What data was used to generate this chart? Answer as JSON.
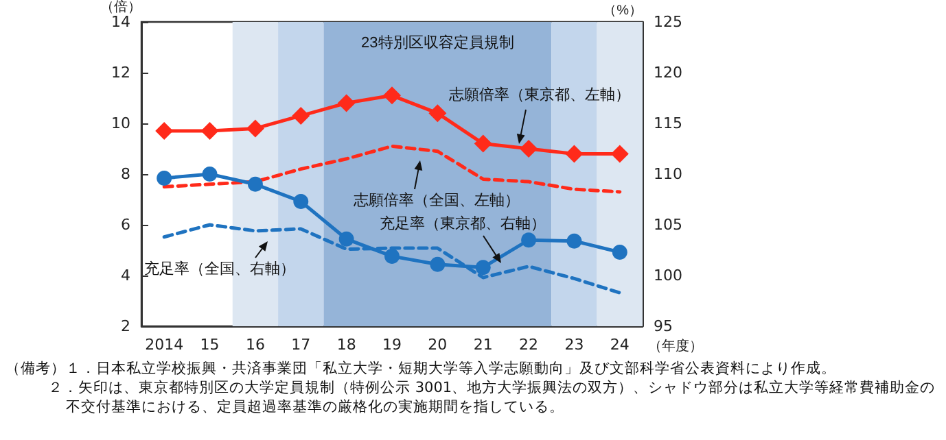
{
  "chart_data": {
    "type": "line",
    "ylabel": "（倍）",
    "y2label": "（%）",
    "xlabel": "（年度）",
    "x": [
      2014,
      2015,
      2016,
      2017,
      2018,
      2019,
      2020,
      2021,
      2022,
      2023,
      2024
    ],
    "xlim": [
      2013.5,
      2024.5
    ],
    "xticks": [
      {
        "value": 2014,
        "label": "2014"
      },
      {
        "value": 2015,
        "label": "15"
      },
      {
        "value": 2016,
        "label": "16"
      },
      {
        "value": 2017,
        "label": "17"
      },
      {
        "value": 2018,
        "label": "18"
      },
      {
        "value": 2019,
        "label": "19"
      },
      {
        "value": 2020,
        "label": "20"
      },
      {
        "value": 2021,
        "label": "21"
      },
      {
        "value": 2022,
        "label": "22"
      },
      {
        "value": 2023,
        "label": "23"
      },
      {
        "value": 2024,
        "label": "24"
      }
    ],
    "ylim": [
      2,
      14
    ],
    "yticks": [
      2,
      4,
      6,
      8,
      10,
      12,
      14
    ],
    "y2lim": [
      95,
      125
    ],
    "y2ticks": [
      95,
      100,
      105,
      110,
      115,
      120,
      125
    ],
    "series": [
      {
        "name": "志願倍率（東京都、左軸）",
        "color": "#ff2a1a",
        "marker": "diamond",
        "line_style": "solid",
        "values": [
          9.7,
          9.7,
          9.8,
          10.3,
          10.8,
          11.1,
          10.4,
          9.2,
          9.0,
          8.8,
          8.8
        ]
      },
      {
        "name": "志願倍率（全国、左軸）",
        "color": "#ff2a1a",
        "marker": "none",
        "line_style": "dashed",
        "values": [
          7.5,
          7.6,
          7.7,
          8.2,
          8.6,
          9.1,
          8.9,
          7.8,
          7.7,
          7.4,
          7.3
        ]
      },
      {
        "name": "充足率（東京都、右軸）",
        "color": "#1f73c0",
        "marker": "circle",
        "line_style": "solid",
        "axis": "y2",
        "values": [
          109.6,
          110.0,
          109.0,
          107.3,
          103.6,
          101.9,
          101.1,
          100.8,
          103.5,
          103.4,
          102.3
        ]
      },
      {
        "name": "充足率（全国、右軸）",
        "color": "#1f73c0",
        "marker": "none",
        "line_style": "dashed",
        "axis": "y2",
        "values": [
          103.8,
          105.0,
          104.4,
          104.6,
          102.6,
          102.7,
          102.7,
          99.8,
          100.9,
          99.7,
          98.3
        ]
      }
    ],
    "bands": [
      {
        "axis": "x",
        "from": 2015.5,
        "to": 2016.5,
        "color": "#dde7f2"
      },
      {
        "axis": "x",
        "from": 2016.5,
        "to": 2017.5,
        "color": "#c3d6ec"
      },
      {
        "axis": "x",
        "from": 2017.5,
        "to": 2022.5,
        "color": "#95b4d8",
        "label": "23特別区収容定員規制"
      },
      {
        "axis": "x",
        "from": 2022.5,
        "to": 2023.5,
        "color": "#c3d6ec"
      },
      {
        "axis": "x",
        "from": 2023.5,
        "to": 2024.5,
        "color": "#dde7f2"
      }
    ],
    "annotations": [
      "（備考）１．日本私立学校振興・共済事業団「私立大学・短期大学等入学志願動向」及び文部科学省公表資料により作成。",
      "２．矢印は、東京都特別区の大学定員規制（特例公示 3001、地方大学振興法の双方）、シャドウ部分は私立大学等経常費補助金の不交付基準における、定員超過率基準の厳格化の実施期間を指している。"
    ]
  }
}
